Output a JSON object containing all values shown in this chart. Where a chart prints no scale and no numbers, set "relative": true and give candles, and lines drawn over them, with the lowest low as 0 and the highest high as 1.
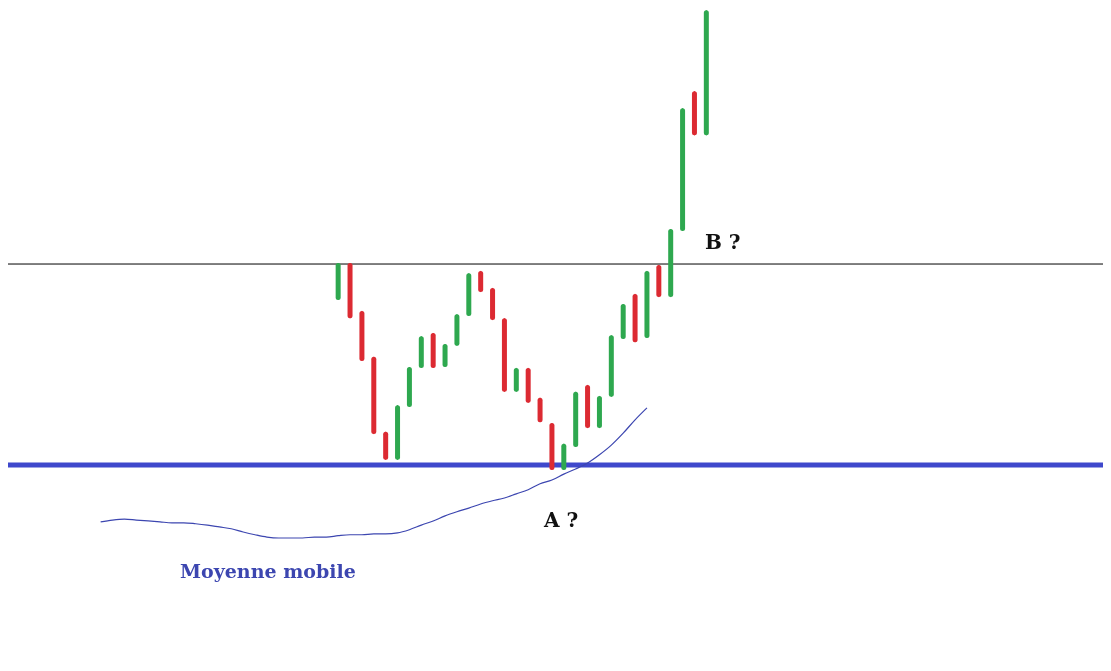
{
  "chart_data": {
    "type": "candlestick",
    "relative": true,
    "categories": [
      null,
      null,
      null,
      null,
      null,
      null,
      null,
      null,
      null,
      null,
      null,
      null,
      null,
      null,
      null,
      null,
      null,
      null,
      null,
      null,
      null,
      null,
      null,
      null,
      null,
      null,
      null,
      null,
      null,
      null,
      null,
      null,
      null,
      null,
      null,
      null,
      null,
      null,
      null,
      null,
      null,
      null,
      null,
      null,
      null,
      null,
      null,
      null,
      null,
      null,
      null,
      null
    ],
    "ohlc": [
      null,
      null,
      null,
      null,
      null,
      null,
      null,
      null,
      null,
      null,
      null,
      null,
      null,
      null,
      null,
      null,
      null,
      null,
      null,
      null,
      [
        0.37,
        0.45,
        0.37,
        0.45
      ],
      [
        0.45,
        0.45,
        0.33,
        0.33
      ],
      [
        0.346,
        0.346,
        0.237,
        0.237
      ],
      [
        0.246,
        0.246,
        0.078,
        0.078
      ],
      [
        0.083,
        0.083,
        0.022,
        0.022
      ],
      [
        0.022,
        0.141,
        0.022,
        0.141
      ],
      [
        0.137,
        0.224,
        0.137,
        0.224
      ],
      [
        0.222,
        0.291,
        0.222,
        0.291
      ],
      [
        0.298,
        0.298,
        0.222,
        0.222
      ],
      [
        0.224,
        0.274,
        0.224,
        0.274
      ],
      [
        0.27,
        0.339,
        0.27,
        0.339
      ],
      [
        0.335,
        0.428,
        0.335,
        0.428
      ],
      [
        0.433,
        0.433,
        0.387,
        0.387
      ],
      [
        0.396,
        0.396,
        0.326,
        0.326
      ],
      [
        0.33,
        0.33,
        0.17,
        0.17
      ],
      [
        0.17,
        0.222,
        0.17,
        0.222
      ],
      [
        0.222,
        0.222,
        0.146,
        0.146
      ],
      [
        0.157,
        0.157,
        0.104,
        0.104
      ],
      [
        0.102,
        0.102,
        0,
        0
      ],
      [
        0,
        0.057,
        0,
        0.057
      ],
      [
        0.05,
        0.17,
        0.05,
        0.17
      ],
      [
        0.185,
        0.185,
        0.091,
        0.091
      ],
      [
        0.091,
        0.161,
        0.091,
        0.161
      ],
      [
        0.159,
        0.293,
        0.159,
        0.293
      ],
      [
        0.285,
        0.361,
        0.285,
        0.361
      ],
      [
        0.383,
        0.383,
        0.278,
        0.278
      ],
      [
        0.287,
        0.433,
        0.287,
        0.433
      ],
      [
        0.446,
        0.446,
        0.376,
        0.376
      ],
      [
        0.376,
        0.524,
        0.376,
        0.524
      ],
      [
        0.52,
        0.787,
        0.52,
        0.787
      ],
      [
        0.824,
        0.824,
        0.728,
        0.728
      ],
      [
        0.728,
        1,
        0.728,
        1
      ]
    ],
    "colors": [
      null,
      null,
      null,
      null,
      null,
      null,
      null,
      null,
      null,
      null,
      null,
      null,
      null,
      null,
      null,
      null,
      null,
      null,
      null,
      null,
      "#2ea84f",
      "#dc2a32",
      "#dc2a32",
      "#dc2a32",
      "#dc2a32",
      "#2ea84f",
      "#2ea84f",
      "#2ea84f",
      "#dc2a32",
      "#2ea84f",
      "#2ea84f",
      "#2ea84f",
      "#dc2a32",
      "#dc2a32",
      "#dc2a32",
      "#2ea84f",
      "#dc2a32",
      "#dc2a32",
      "#dc2a32",
      "#2ea84f",
      "#2ea84f",
      "#dc2a32",
      "#2ea84f",
      "#2ea84f",
      "#2ea84f",
      "#dc2a32",
      "#2ea84f",
      "#dc2a32",
      "#2ea84f",
      "#2ea84f",
      "#dc2a32",
      "#2ea84f"
    ],
    "series": [
      {
        "name": "Moyenne mobile",
        "type": "line",
        "color": "#3c46b0",
        "values": [
          -0.113,
          -0.109,
          -0.107,
          -0.109,
          -0.111,
          -0.113,
          -0.115,
          -0.115,
          -0.117,
          -0.12,
          -0.124,
          -0.128,
          -0.135,
          -0.141,
          -0.146,
          -0.148,
          -0.148,
          -0.148,
          -0.146,
          -0.146,
          -0.143,
          -0.141,
          -0.141,
          -0.139,
          -0.139,
          -0.137,
          -0.13,
          -0.12,
          -0.111,
          -0.1,
          -0.091,
          -0.083,
          -0.074,
          -0.067,
          -0.061,
          -0.052,
          -0.043,
          -0.03,
          -0.022,
          -0.009,
          0.002,
          0.015,
          0.033,
          0.054,
          0.08,
          0.109,
          0.135,
          null,
          null,
          null,
          null,
          null
        ]
      }
    ],
    "ref_lines": [
      {
        "axis": "y",
        "value": 0.448,
        "color": "#000000"
      },
      {
        "axis": "y",
        "value": 0.011,
        "color": "#3f48cc"
      }
    ],
    "annotations": [
      "B ?",
      "A ?"
    ]
  }
}
